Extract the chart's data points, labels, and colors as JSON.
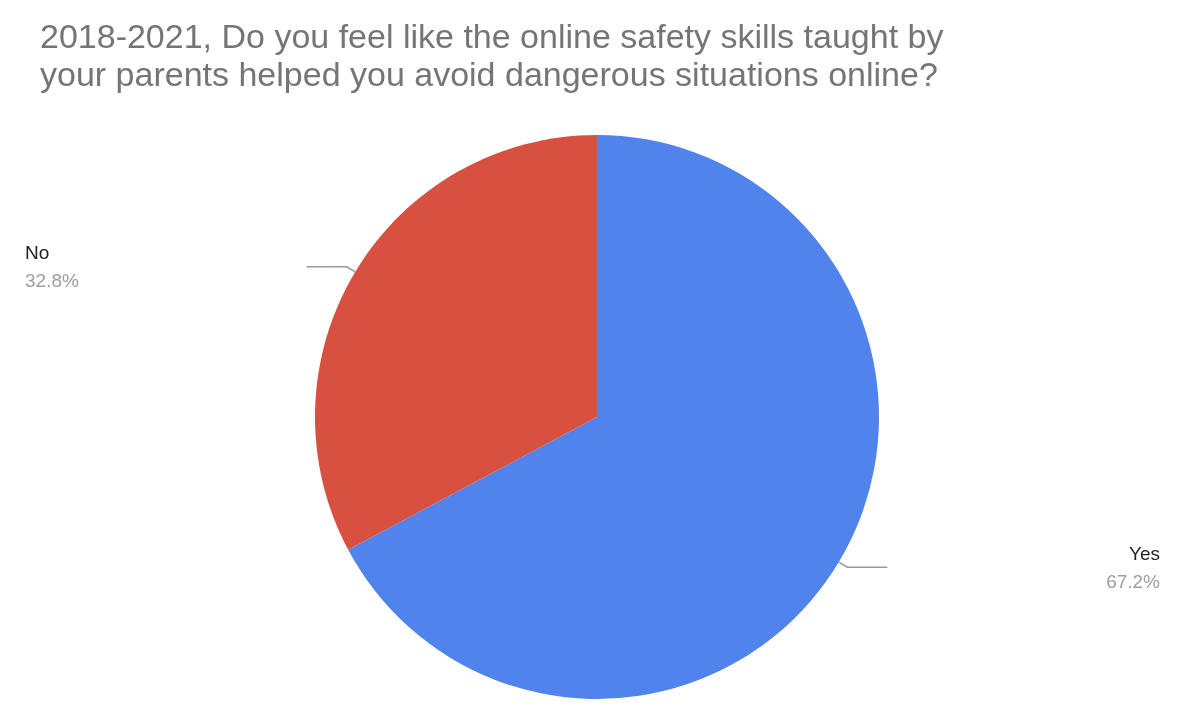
{
  "chart_data": {
    "type": "pie",
    "title": "2018-2021, Do you feel like the online safety skills taught by\nyour parents helped you avoid dangerous situations online?",
    "categories": [
      "Yes",
      "No"
    ],
    "values": [
      67.2,
      32.8
    ],
    "colors": [
      "#5083ec",
      "#d85040"
    ],
    "value_labels": [
      "67.2%",
      "32.8%"
    ],
    "legend": false
  }
}
